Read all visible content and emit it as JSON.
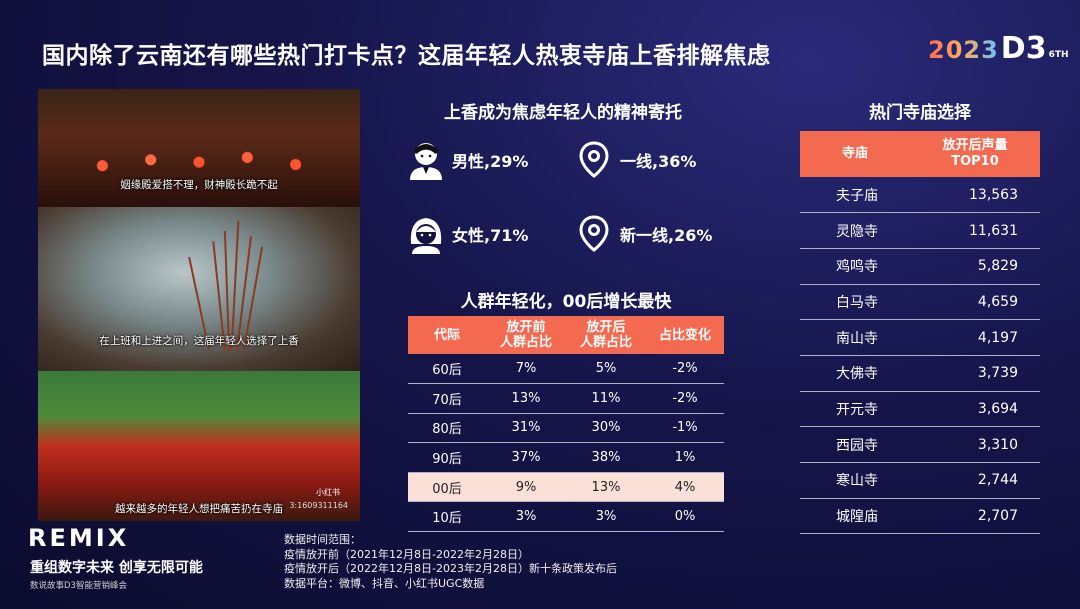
{
  "title": "国内除了云南还有哪些热门打卡点？这届年轻人热衷寺庙上香排解焦虑",
  "logo": {
    "year": "2023",
    "mark": "D3",
    "suffix": "6TH"
  },
  "photos": {
    "caption1": "姻缘殿爱搭不理，财神殿长跪不起",
    "caption2": "在上班和上进之间，这届年轻人选择了上香",
    "caption3": "越来越多的年轻人想把痛苦扔在寺庙",
    "watermark": "小红书",
    "watermark_id": "3:1609311164"
  },
  "brand": {
    "name": "REMIX",
    "slogan": "重组数字未来 创享无限可能",
    "sub": "数说故事D3智能营销峰会"
  },
  "notes": [
    "数据时间范围：",
    "疫情放开前（2021年12月8日-2022年2月28日）",
    "疫情放开后（2022年12月8日-2023年2月28日）新十条政策发布后",
    "数据平台：微博、抖音、小红书UGC数据"
  ],
  "spiritual": {
    "heading": "上香成为焦虑年轻人的精神寄托",
    "male": "男性,29%",
    "female": "女性,71%",
    "tier1": "一线,36%",
    "newtier1": "新一线,26%",
    "icons": [
      "male-avatar-icon",
      "female-avatar-icon",
      "location-pin-icon",
      "location-pin-icon"
    ]
  },
  "age_table": {
    "heading": "人群年轻化，00后增长最快",
    "headers": [
      "代际",
      "放开前\n人群占比",
      "放开后\n人群占比",
      "占比变化"
    ],
    "rows": [
      [
        "60后",
        "7%",
        "5%",
        "-2%"
      ],
      [
        "70后",
        "13%",
        "11%",
        "-2%"
      ],
      [
        "80后",
        "31%",
        "30%",
        "-1%"
      ],
      [
        "90后",
        "37%",
        "38%",
        "1%"
      ],
      [
        "00后",
        "9%",
        "13%",
        "4%"
      ],
      [
        "10后",
        "3%",
        "3%",
        "0%"
      ]
    ],
    "highlight_row": 4,
    "highlight_color": "#fbe0d8",
    "header_color": "#f36a50"
  },
  "temple_table": {
    "heading": "热门寺庙选择",
    "headers": [
      "寺庙",
      "放开后声量\nTOP10"
    ],
    "rows": [
      [
        "夫子庙",
        "13,563"
      ],
      [
        "灵隐寺",
        "11,631"
      ],
      [
        "鸡鸣寺",
        "5,829"
      ],
      [
        "白马寺",
        "4,659"
      ],
      [
        "南山寺",
        "4,197"
      ],
      [
        "大佛寺",
        "3,739"
      ],
      [
        "开元寺",
        "3,694"
      ],
      [
        "西园寺",
        "3,310"
      ],
      [
        "寒山寺",
        "2,744"
      ],
      [
        "城隍庙",
        "2,707"
      ]
    ]
  }
}
